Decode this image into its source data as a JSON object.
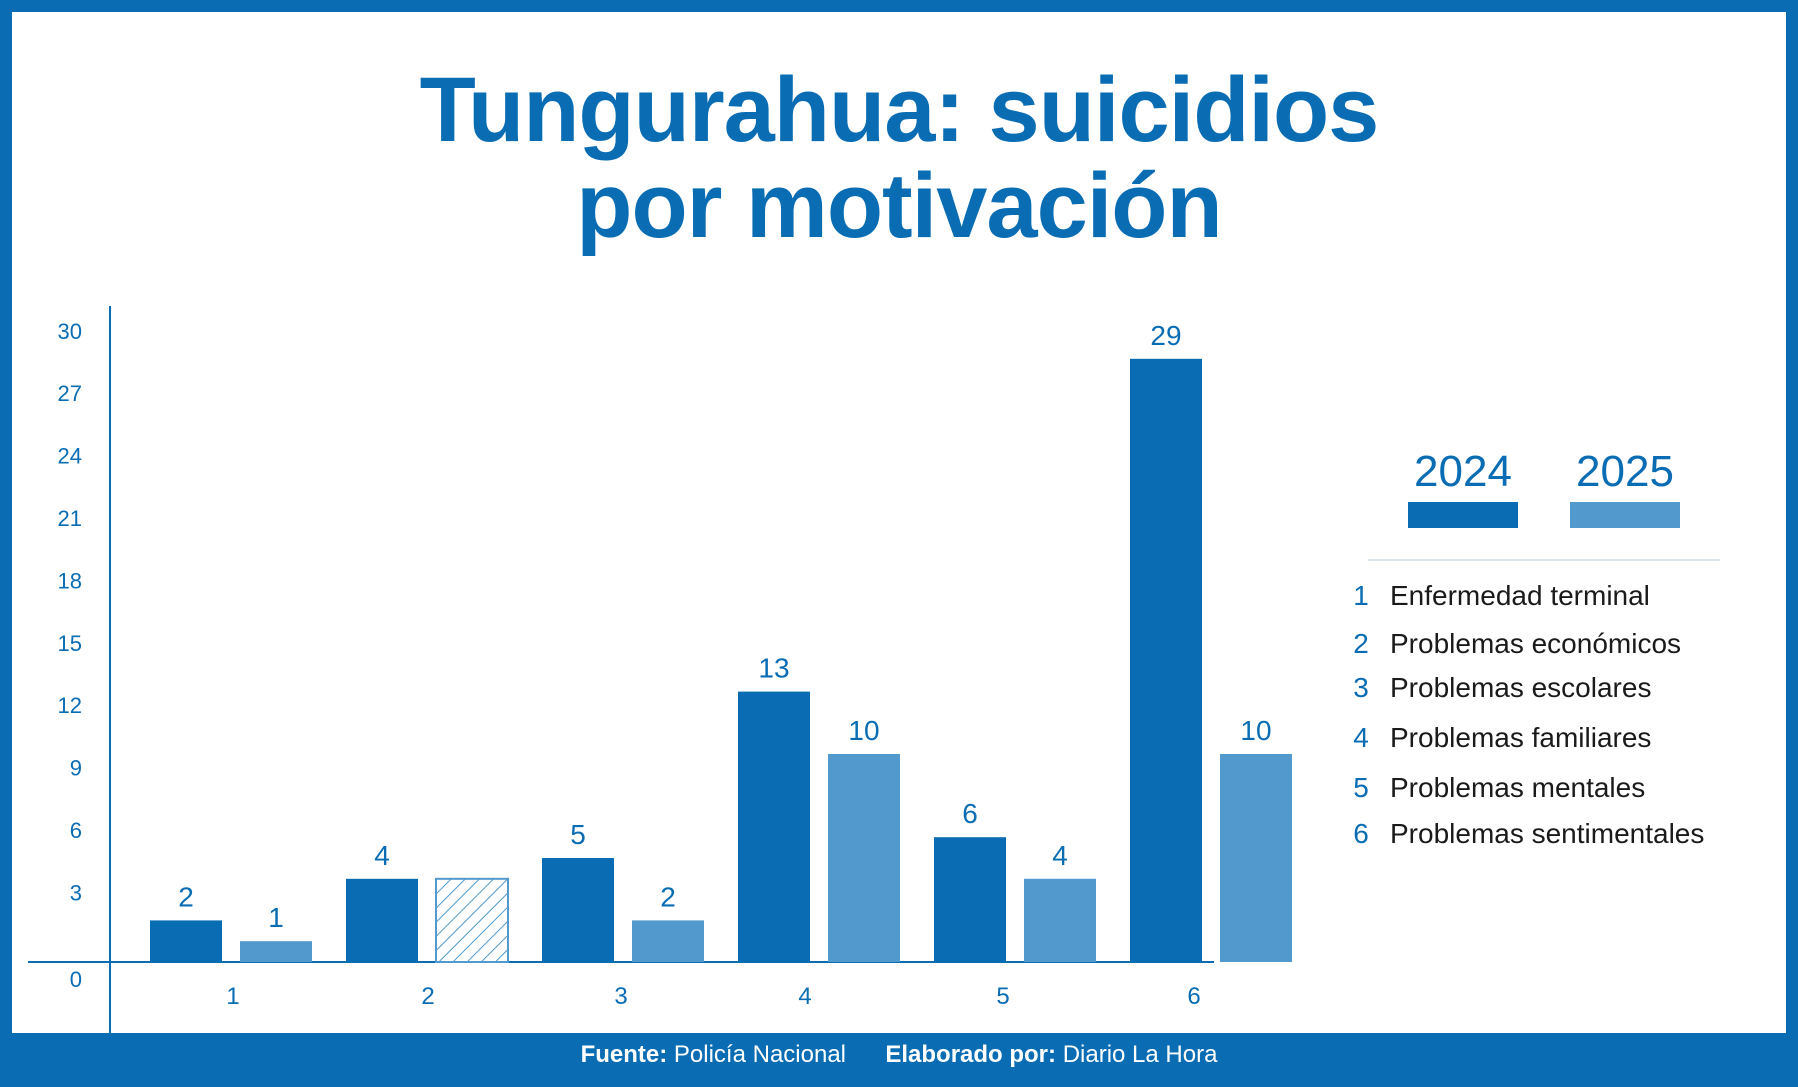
{
  "title": {
    "line1": "Tungurahua: suicidios",
    "line2": "por motivación"
  },
  "colors": {
    "primary": "#0a6db4",
    "secondary": "#5299cd",
    "text": "#1a1a1a"
  },
  "legend": {
    "years": [
      {
        "label": "2024",
        "color": "#0a6db4"
      },
      {
        "label": "2025",
        "color": "#5299cd"
      }
    ],
    "categories": [
      {
        "num": "1",
        "label": "Enfermedad terminal"
      },
      {
        "num": "2",
        "label": "Problemas económicos"
      },
      {
        "num": "3",
        "label": "Problemas escolares"
      },
      {
        "num": "4",
        "label": "Problemas familiares"
      },
      {
        "num": "5",
        "label": "Problemas mentales"
      },
      {
        "num": "6",
        "label": "Problemas sentimentales"
      }
    ]
  },
  "chart_data": {
    "type": "bar",
    "title": "Tungurahua: suicidios por motivación",
    "categories": [
      "1",
      "2",
      "3",
      "4",
      "5",
      "6"
    ],
    "series": [
      {
        "name": "2024",
        "values": [
          2,
          4,
          5,
          13,
          6,
          29
        ],
        "labels": [
          "2",
          "4",
          "5",
          "13",
          "6",
          "29"
        ]
      },
      {
        "name": "2025",
        "values": [
          1,
          4,
          2,
          10,
          4,
          10
        ],
        "labels": [
          "1",
          "",
          "2",
          "10",
          "4",
          "10"
        ],
        "hatched_index": 1
      }
    ],
    "yticks": [
      "0",
      "3",
      "6",
      "9",
      "12",
      "15",
      "18",
      "21",
      "24",
      "27",
      "30"
    ],
    "ytick_values": [
      0,
      3,
      6,
      9,
      12,
      15,
      18,
      21,
      24,
      27,
      30
    ],
    "ylim": [
      0,
      30
    ],
    "xlabel": "",
    "ylabel": "",
    "legend_position": "right"
  },
  "footer": {
    "source_label": "Fuente:",
    "source_value": "Policía Nacional",
    "author_label": "Elaborado por:",
    "author_value": "Diario La Hora"
  }
}
